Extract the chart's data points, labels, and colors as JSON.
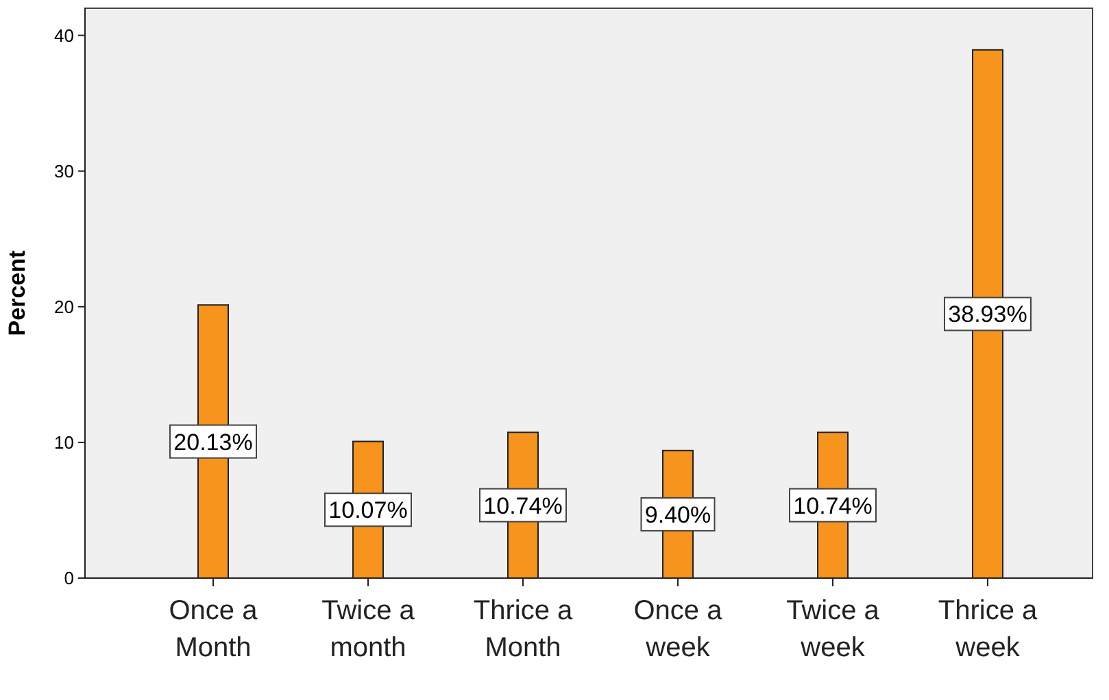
{
  "chart_data": {
    "type": "bar",
    "ylabel": "Percent",
    "categories": [
      "Once a Month",
      "Twice a month",
      "Thrice a Month",
      "Once a week",
      "Twice a week",
      "Thrice a week"
    ],
    "values": [
      20.13,
      10.07,
      10.74,
      9.4,
      10.74,
      38.93
    ],
    "value_labels": [
      "20.13%",
      "10.07%",
      "10.74%",
      "9.40%",
      "10.74%",
      "38.93%"
    ],
    "color": "#f7941d",
    "ylim": [
      0,
      42
    ],
    "yticks": [
      0,
      10,
      20,
      30,
      40
    ],
    "grid": false
  }
}
